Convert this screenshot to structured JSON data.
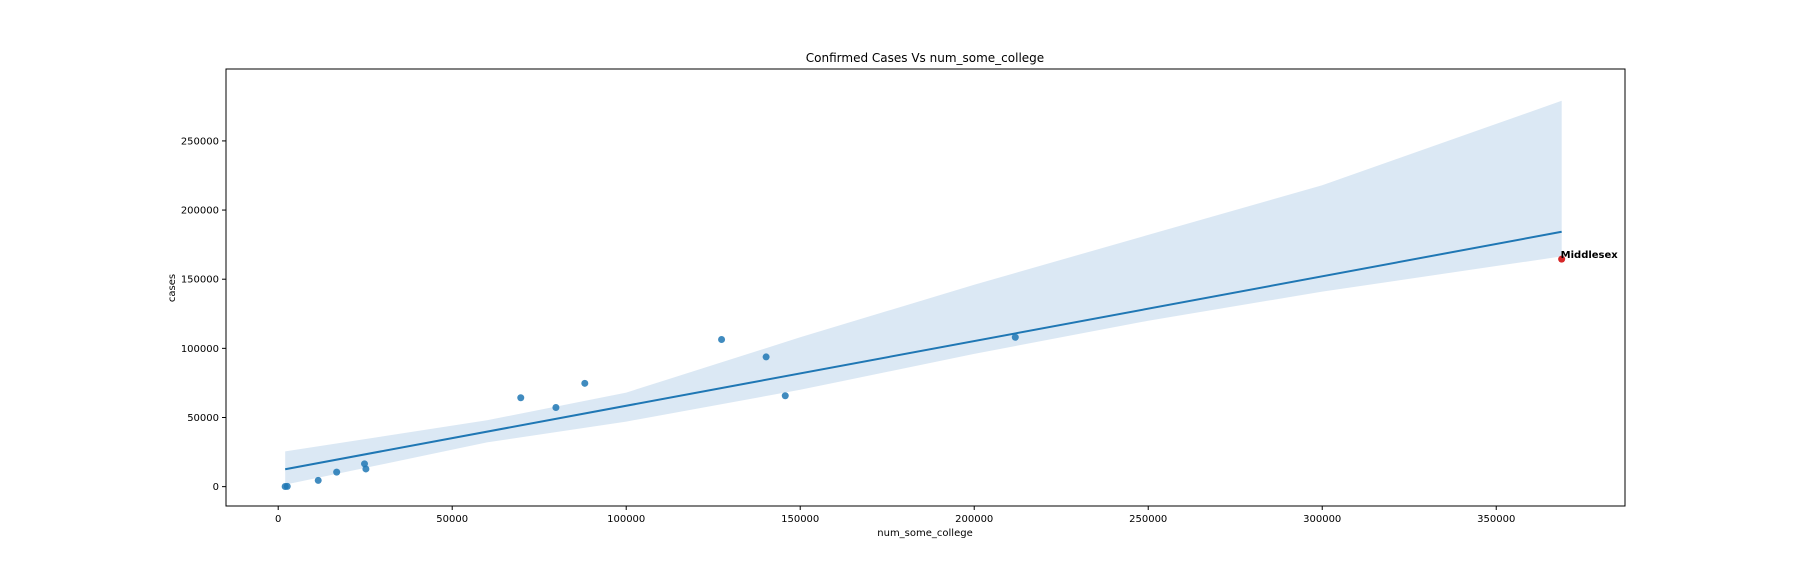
{
  "chart_data": {
    "type": "scatter",
    "title": "Confirmed Cases Vs num_some_college",
    "xlabel": "num_some_college",
    "ylabel": "cases",
    "xlim": [
      -15000,
      387000
    ],
    "ylim": [
      -14000,
      302000
    ],
    "xticks": [
      0,
      50000,
      100000,
      150000,
      200000,
      250000,
      300000,
      350000
    ],
    "yticks": [
      0,
      50000,
      100000,
      150000,
      200000,
      250000
    ],
    "xtick_labels": [
      "0",
      "50000",
      "100000",
      "150000",
      "200000",
      "250000",
      "300000",
      "350000"
    ],
    "ytick_labels": [
      "0",
      "50000",
      "100000",
      "150000",
      "200000",
      "250000"
    ],
    "grid": false,
    "colors": {
      "points": "#1f77b4",
      "line": "#1f77b4",
      "band": "#cfe0f0",
      "highlight": "#d62728"
    },
    "points": [
      {
        "x": 2000,
        "y": 100
      },
      {
        "x": 2600,
        "y": 200
      },
      {
        "x": 11500,
        "y": 4500
      },
      {
        "x": 16800,
        "y": 10500
      },
      {
        "x": 24800,
        "y": 16500
      },
      {
        "x": 25200,
        "y": 12800
      },
      {
        "x": 69700,
        "y": 64300
      },
      {
        "x": 79800,
        "y": 57200
      },
      {
        "x": 88100,
        "y": 74700
      },
      {
        "x": 127400,
        "y": 106400
      },
      {
        "x": 140200,
        "y": 93800
      },
      {
        "x": 145700,
        "y": 65700
      },
      {
        "x": 211800,
        "y": 108000
      }
    ],
    "highlight": {
      "x": 368800,
      "y": 164500,
      "label": "Middlesex"
    },
    "regression": {
      "x": [
        2000,
        368800
      ],
      "y": [
        12600,
        184300
      ]
    },
    "confidence_band": {
      "x": [
        2000,
        60000,
        100000,
        150000,
        200000,
        250000,
        300000,
        368800
      ],
      "upper": [
        25500,
        48000,
        68000,
        108000,
        146000,
        182000,
        218000,
        279000
      ],
      "lower": [
        1500,
        32000,
        47000,
        70000,
        96000,
        120000,
        141000,
        166500
      ]
    }
  }
}
